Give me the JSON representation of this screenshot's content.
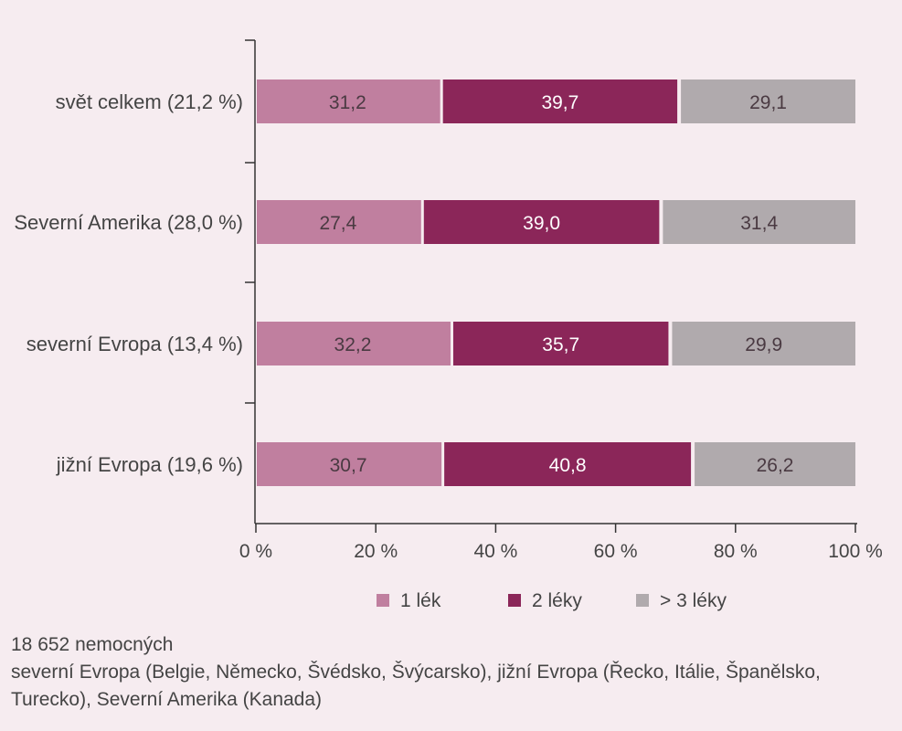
{
  "chart_data": {
    "type": "bar",
    "orientation": "horizontal",
    "stacked": true,
    "categories": [
      "svět celkem (21,2 %)",
      "Severní Amerika (28,0 %)",
      "severní Evropa (13,4 %)",
      "jižní Evropa (19,6 %)"
    ],
    "series": [
      {
        "name": "1 lék",
        "color": "#c07f9f",
        "values": [
          31.2,
          27.4,
          32.2,
          30.7
        ],
        "labels": [
          "31,2",
          "27,4",
          "32,2",
          "30,7"
        ]
      },
      {
        "name": "2 léky",
        "color": "#8b2659",
        "values": [
          39.7,
          39.0,
          35.7,
          40.8
        ],
        "labels": [
          "39,7",
          "39,0",
          "35,7",
          "40,8"
        ]
      },
      {
        "name": "> 3 léky",
        "color": "#b0aaad",
        "values": [
          29.1,
          31.4,
          29.9,
          26.2
        ],
        "labels": [
          "29,1",
          "31,4",
          "29,9",
          "26,2"
        ]
      }
    ],
    "xlim": [
      0,
      100
    ],
    "xticks": [
      "0 %",
      "20 %",
      "40 %",
      "60 %",
      "80 %",
      "100 %"
    ],
    "grid": false,
    "legend_position": "bottom"
  },
  "notes": {
    "line1": "18 652 nemocných",
    "line2": "severní Evropa (Belgie, Německo, Švédsko, Švýcarsko), jižní Evropa (Řecko, Itálie, Španělsko,",
    "line3": "Turecko), Severní Amerika (Kanada)"
  }
}
